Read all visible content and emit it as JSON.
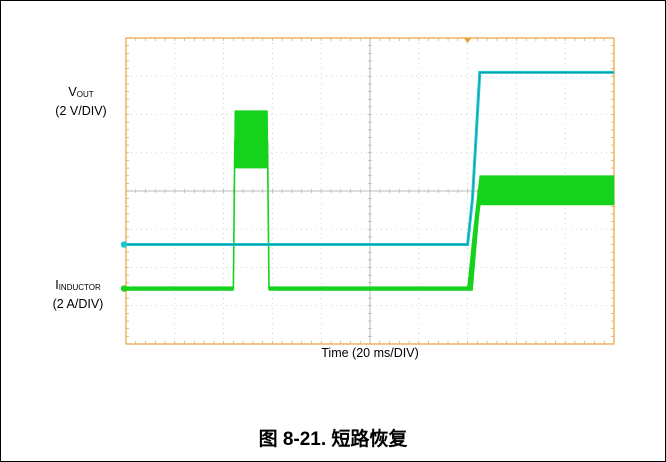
{
  "chart_data": {
    "type": "line",
    "title": "",
    "xlabel": "Time (20 ms/DIV)",
    "xlim": [
      0,
      200
    ],
    "grid": true,
    "series": [
      {
        "name": "V_OUT",
        "label_main": "V",
        "label_sub": "OUT",
        "scale": "(2 V/DIV)",
        "color": "#1fc6d0",
        "x": [
          0,
          68,
          69,
          95,
          110,
          140,
          142,
          145,
          200
        ],
        "y": [
          -1.4,
          -1.4,
          -1.4,
          -1.4,
          -1.4,
          -1.4,
          -0.2,
          3.1,
          3.1
        ],
        "band": 0.08
      },
      {
        "name": "I_INDUCTOR",
        "label_main": "I",
        "label_sub": "INDUCTOR",
        "scale": "(2 A/DIV)",
        "color": "#15d21a",
        "x": [
          0,
          44,
          44.6,
          58,
          58.6,
          140,
          142,
          145,
          200
        ],
        "y": [
          -2.55,
          -2.55,
          1.3,
          1.3,
          -2.55,
          -2.55,
          -1.9,
          -0.35,
          -0.35
        ],
        "upper": [
          -2.5,
          -2.5,
          2.1,
          2.1,
          -2.5,
          -2.5,
          -1.25,
          0.4,
          0.4
        ],
        "lower": [
          -2.6,
          -2.6,
          0.6,
          0.6,
          -2.6,
          -2.6,
          -2.6,
          -0.35,
          -0.35
        ]
      }
    ]
  },
  "caption": "图 8-21. 短路恢复"
}
